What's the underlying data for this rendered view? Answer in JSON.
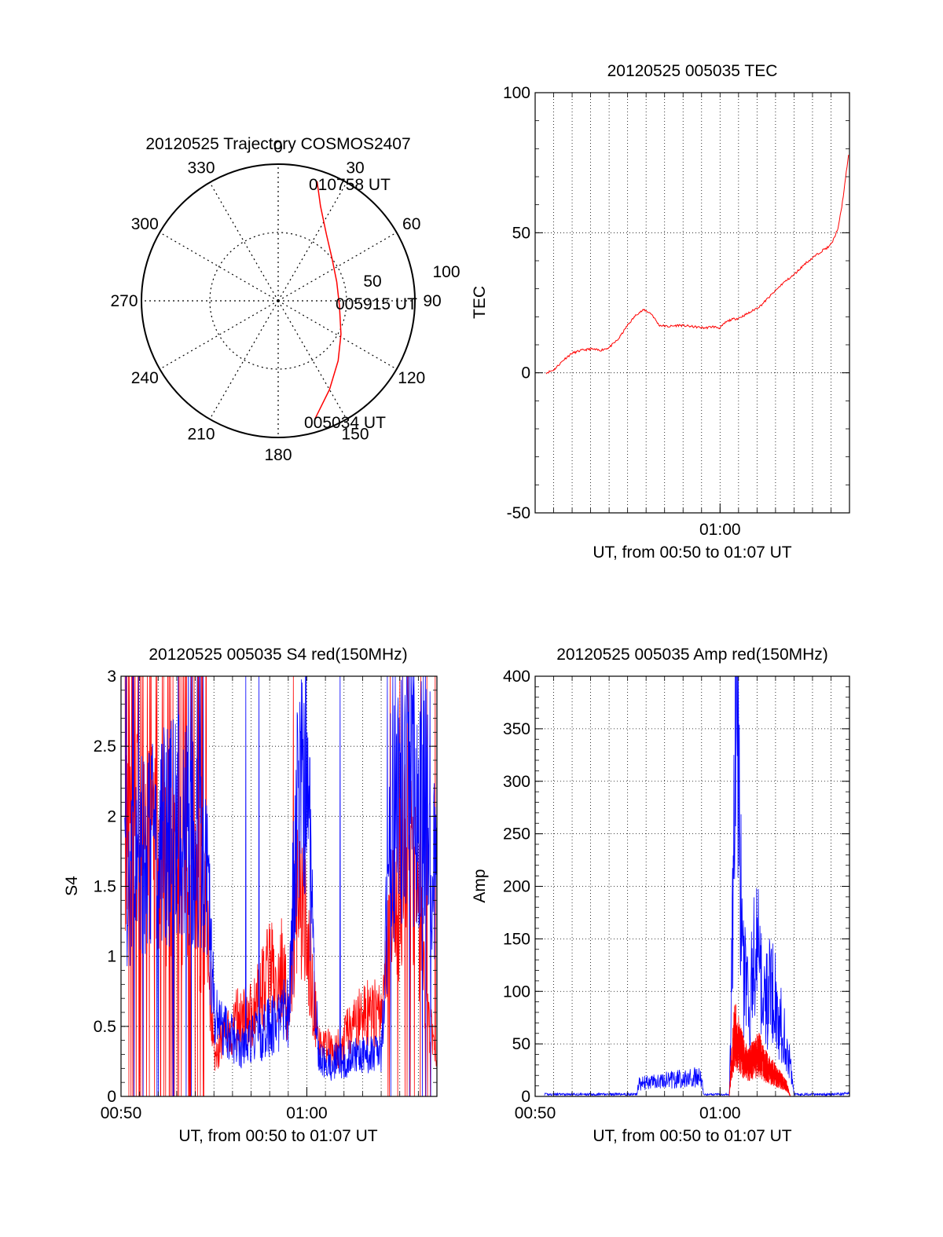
{
  "chart_data": [
    {
      "type": "polar",
      "title": "20120525 Trajectory COSMOS2407",
      "azimuth_labels": [
        "0",
        "30",
        "60",
        "90",
        "120",
        "150",
        "180",
        "210",
        "240",
        "270",
        "300",
        "330"
      ],
      "radial_labels": [
        "50",
        "100"
      ],
      "elevation_max": 100,
      "start_label": "005034 UT",
      "mid_label": "005915 UT",
      "end_label": "010758 UT",
      "trajectory": {
        "color": "#ff0000",
        "points_az_r": [
          [
            163,
            91
          ],
          [
            150,
            75
          ],
          [
            135,
            62
          ],
          [
            118,
            52
          ],
          [
            95,
            45
          ],
          [
            72,
            45
          ],
          [
            52,
            50
          ],
          [
            36,
            60
          ],
          [
            24,
            76
          ],
          [
            18,
            92
          ]
        ]
      },
      "grid": "dotted"
    },
    {
      "type": "line",
      "title": "20120525 005035 TEC",
      "xlabel": "UT, from 00:50 to 01:07 UT",
      "ylabel": "TEC",
      "xlim_minutes": [
        0,
        17
      ],
      "ylim": [
        -50,
        100
      ],
      "yticks": [
        -50,
        0,
        50,
        100
      ],
      "xtick_labels": [
        {
          "value": 10,
          "label": "01:00"
        }
      ],
      "grid": true,
      "series": [
        {
          "color": "#ff0000",
          "x": [
            0.6,
            1.0,
            1.3,
            1.6,
            2.0,
            2.5,
            3.0,
            3.5,
            4.0,
            4.5,
            5.0,
            5.5,
            5.9,
            6.3,
            6.7,
            7.2,
            7.8,
            8.5,
            9.2,
            9.6,
            10.0,
            10.3,
            10.6,
            11.0,
            11.6,
            12.2,
            12.8,
            13.4,
            14.0,
            14.6,
            15.2,
            15.6,
            15.9,
            16.1,
            16.4,
            16.6,
            16.8,
            16.95
          ],
          "y": [
            0,
            1,
            3,
            5,
            7,
            8,
            8.5,
            8,
            9,
            12,
            17,
            21,
            22.5,
            21,
            17,
            16.5,
            17,
            16.5,
            16,
            16.5,
            16,
            18,
            19,
            19.5,
            21.5,
            24,
            28,
            32,
            35,
            39,
            42,
            44,
            45,
            47,
            52,
            60,
            70,
            78
          ]
        }
      ]
    },
    {
      "type": "line",
      "title": "20120525 005035 S4 red(150MHz)",
      "xlabel": "UT, from 00:50 to 01:07 UT",
      "ylabel": "S4",
      "xlim_minutes": [
        0,
        17
      ],
      "ylim": [
        0,
        3
      ],
      "yticks": [
        0,
        0.5,
        1,
        1.5,
        2,
        2.5,
        3
      ],
      "ytick_labels": [
        "0",
        "0.5",
        "1",
        "1.5",
        "2",
        "2.5",
        "3"
      ],
      "xtick_labels": [
        {
          "value": 0,
          "label": "00:50"
        },
        {
          "value": 10,
          "label": "01:00"
        }
      ],
      "grid": true,
      "series": [
        {
          "color": "#ff0000",
          "x": [
            0.2,
            1.0,
            2.0,
            3.0,
            4.0,
            4.6,
            5.0,
            5.5,
            6.0,
            6.5,
            7.0,
            7.5,
            8.0,
            8.5,
            9.0,
            9.5,
            10.0,
            10.6,
            11.0,
            11.5,
            12.0,
            12.5,
            13.0,
            13.5,
            14.0,
            14.5,
            15.0,
            15.5,
            16.0,
            16.5,
            17.0
          ],
          "y": [
            1.9,
            1.8,
            1.7,
            1.5,
            1.4,
            1.2,
            0.3,
            0.4,
            0.5,
            0.6,
            0.55,
            0.7,
            0.9,
            0.95,
            0.7,
            1.4,
            1.2,
            0.4,
            0.35,
            0.3,
            0.4,
            0.5,
            0.55,
            0.6,
            0.55,
            1.2,
            1.5,
            1.8,
            1.3,
            0.6,
            0.2
          ]
        },
        {
          "color": "#0000ff",
          "x": [
            0.2,
            1.0,
            2.0,
            3.0,
            4.0,
            4.6,
            5.0,
            5.5,
            6.0,
            6.5,
            7.0,
            7.5,
            8.0,
            8.5,
            9.0,
            9.5,
            10.0,
            10.6,
            11.0,
            11.5,
            12.0,
            12.5,
            13.0,
            13.5,
            14.0,
            14.5,
            15.0,
            15.5,
            16.0,
            16.5,
            17.0
          ],
          "y": [
            1.6,
            1.7,
            1.8,
            1.9,
            1.8,
            1.5,
            0.7,
            0.5,
            0.4,
            0.35,
            0.4,
            0.45,
            0.5,
            0.55,
            0.6,
            2.0,
            2.2,
            0.3,
            0.2,
            0.25,
            0.25,
            0.3,
            0.3,
            0.3,
            0.3,
            1.9,
            2.1,
            2.4,
            2.0,
            2.2,
            1.4
          ]
        }
      ]
    },
    {
      "type": "line",
      "title": "20120525 005035 Amp red(150MHz)",
      "xlabel": "UT, from 00:50 to 01:07 UT",
      "ylabel": "Amp",
      "xlim_minutes": [
        0,
        17
      ],
      "ylim": [
        0,
        400
      ],
      "yticks": [
        0,
        50,
        100,
        150,
        200,
        250,
        300,
        350,
        400
      ],
      "xtick_labels": [
        {
          "value": 0,
          "label": "00:50"
        },
        {
          "value": 10,
          "label": "01:00"
        }
      ],
      "grid": true,
      "series": [
        {
          "color": "#0000ff",
          "x": [
            0.5,
            2.0,
            4.0,
            5.5,
            5.6,
            6.5,
            7.5,
            8.5,
            9.0,
            9.1,
            10.5,
            10.6,
            10.9,
            11.1,
            11.3,
            11.6,
            11.9,
            12.2,
            12.5,
            12.8,
            13.1,
            13.4,
            13.7,
            14.0,
            15.0,
            16.0,
            17.0
          ],
          "y": [
            2,
            2,
            2,
            2,
            12,
            14,
            16,
            18,
            18,
            2,
            2,
            80,
            390,
            200,
            110,
            80,
            150,
            110,
            90,
            110,
            80,
            60,
            40,
            2,
            2,
            2,
            3
          ]
        },
        {
          "color": "#ff0000",
          "x": [
            10.5,
            10.6,
            10.8,
            11.0,
            11.2,
            11.5,
            11.8,
            12.1,
            12.4,
            12.7,
            13.0,
            13.3,
            13.6,
            13.8
          ],
          "y": [
            0,
            30,
            60,
            50,
            40,
            30,
            35,
            40,
            30,
            25,
            20,
            15,
            10,
            0
          ]
        }
      ]
    }
  ]
}
